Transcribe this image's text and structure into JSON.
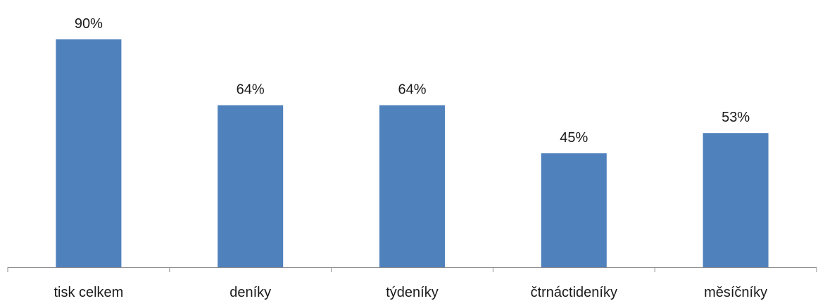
{
  "chart_data": {
    "type": "bar",
    "categories": [
      "tisk celkem",
      "deníky",
      "týdeníky",
      "čtrnáctideníky",
      "měsíčníky"
    ],
    "values": [
      90,
      64,
      64,
      45,
      53
    ],
    "value_labels": [
      "90%",
      "64%",
      "64%",
      "45%",
      "53%"
    ],
    "unit": "%",
    "ylim": [
      0,
      100
    ],
    "grid": false,
    "legend": "none",
    "bar_color": "#4F81BD",
    "axis_color": "#8c8c8c"
  }
}
